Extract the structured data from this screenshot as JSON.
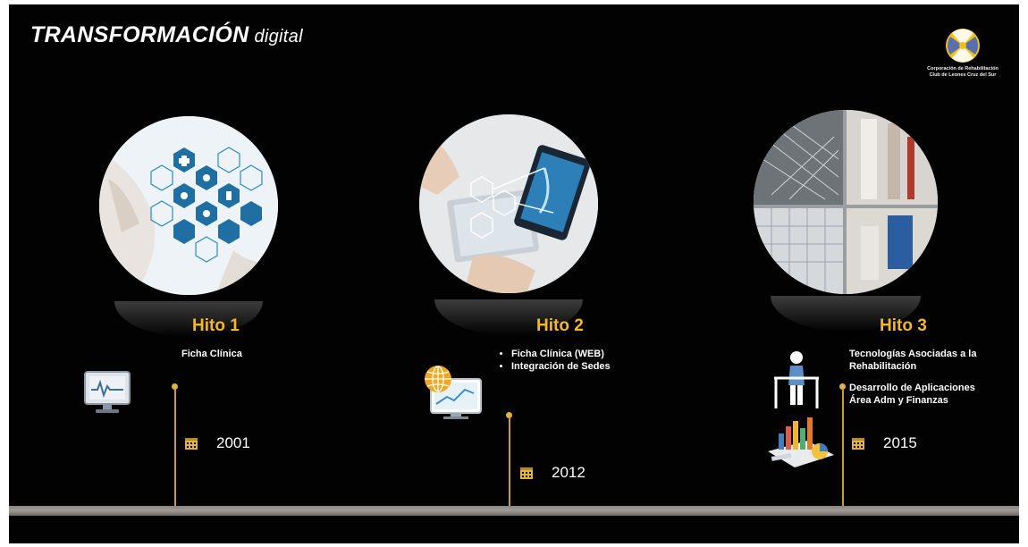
{
  "title": {
    "strong": "TRANSFORMACIÓN",
    "light": "digital"
  },
  "logo": {
    "line1": "Corporación de Rehabilitación",
    "line2": "Club de Leones Cruz del Sur"
  },
  "milestones": [
    {
      "label": "Hito 1",
      "items": [
        "Ficha Clínica"
      ],
      "year": "2001"
    },
    {
      "label": "Hito 2",
      "items": [
        "Ficha Clínica (WEB)",
        "Integración de Sedes"
      ],
      "year": "2012"
    },
    {
      "label": "Hito 3",
      "items": [
        "Tecnologías Asociadas a la Rehabilitación",
        "Desarrollo de Aplicaciones Área Adm y Finanzas"
      ],
      "year": "2015"
    }
  ],
  "colors": {
    "accent": "#f3b82a",
    "background": "#020202",
    "line": "#c79a3a"
  },
  "icons": [
    "monitor-icon",
    "web-globe-icon",
    "rehab-walker-icon",
    "finance-charts-icon",
    "calendar-icon"
  ]
}
